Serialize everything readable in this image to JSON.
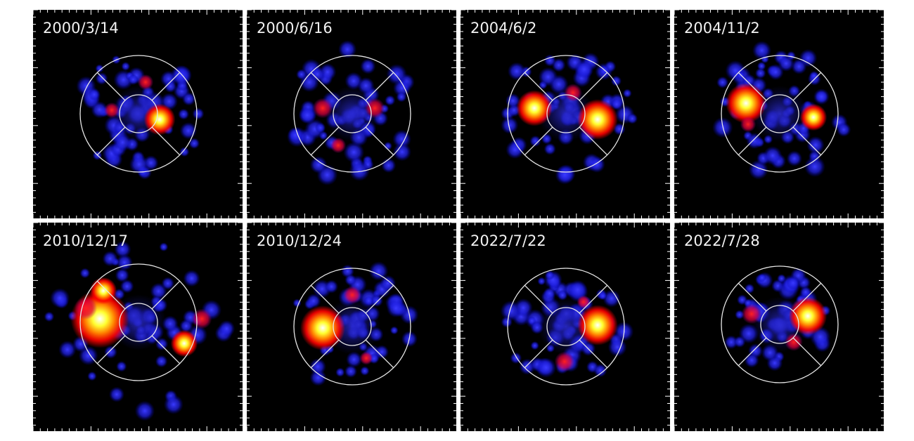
{
  "panels": [
    {
      "label": "2000/3/14"
    },
    {
      "label": "2000/6/16"
    },
    {
      "label": "2004/6/2"
    },
    {
      "label": "2004/11/2"
    },
    {
      "label": "2010/12/17"
    },
    {
      "label": "2010/12/24"
    },
    {
      "label": "2022/7/22"
    },
    {
      "label": "2022/7/28"
    }
  ]
}
